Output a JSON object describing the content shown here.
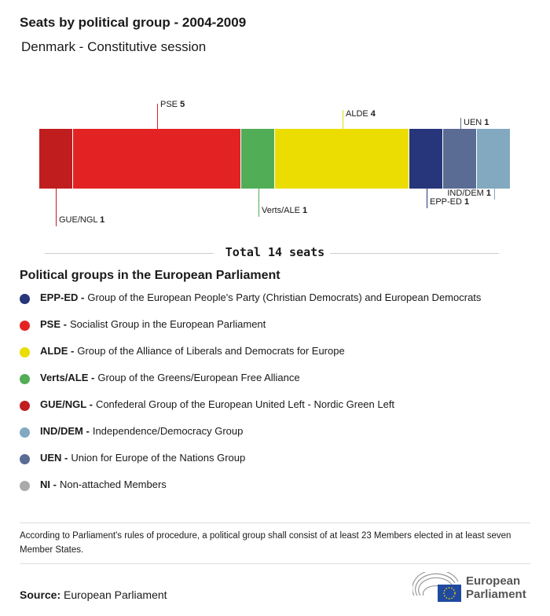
{
  "title": "Seats by political group - 2004-2009",
  "subtitle": "Denmark - Constitutive session",
  "chart_data": {
    "type": "bar",
    "orientation": "stacked-horizontal",
    "categories": [
      "GUE/NGL",
      "PSE",
      "Verts/ALE",
      "ALDE",
      "EPP-ED",
      "UEN",
      "IND/DEM"
    ],
    "values": [
      1,
      5,
      1,
      4,
      1,
      1,
      1
    ],
    "colors": [
      "#c01d1f",
      "#e32323",
      "#52ad57",
      "#ebdd02",
      "#27357a",
      "#5a6b94",
      "#82a9c0"
    ],
    "total_label": "Total 14 seats"
  },
  "legend": {
    "title": "Political groups in the European Parliament",
    "items": [
      {
        "abbr": "EPP-ED -",
        "name": "Group of the European People's Party (Christian Democrats) and European Democrats",
        "color": "#27357a"
      },
      {
        "abbr": "PSE -",
        "name": "Socialist Group in the European Parliament",
        "color": "#e32323"
      },
      {
        "abbr": "ALDE -",
        "name": "Group of the Alliance of Liberals and Democrats for Europe",
        "color": "#ebdd02"
      },
      {
        "abbr": "Verts/ALE -",
        "name": "Group of the Greens/European Free Alliance",
        "color": "#52ad57"
      },
      {
        "abbr": "GUE/NGL -",
        "name": "Confederal Group of the European United Left - Nordic Green Left",
        "color": "#c01d1f"
      },
      {
        "abbr": "IND/DEM -",
        "name": "Independence/Democracy Group",
        "color": "#82a9c0"
      },
      {
        "abbr": "UEN -",
        "name": "Union for Europe of the Nations Group",
        "color": "#5a6b94"
      },
      {
        "abbr": "NI -",
        "name": "Non-attached Members",
        "color": "#aaaaaa"
      }
    ]
  },
  "note": "According to Parliament's rules of procedure, a political group shall consist of at least 23 Members elected in at least seven Member States.",
  "source": {
    "label": "Source:",
    "value": "European Parliament"
  },
  "logo": {
    "text1": "European",
    "text2": "Parliament"
  }
}
